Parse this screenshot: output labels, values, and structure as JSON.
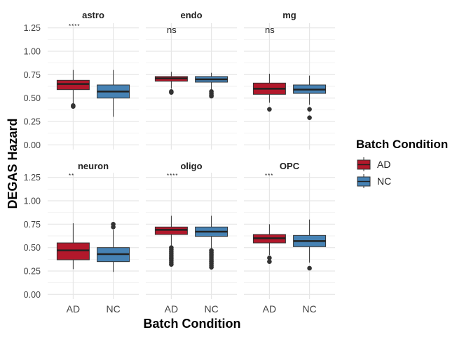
{
  "chart_data": {
    "type": "box",
    "xlabel": "Batch Condition",
    "ylabel": "DEGAS Hazard",
    "ylim": [
      -0.05,
      1.3
    ],
    "yticks": [
      "0.00",
      "0.25",
      "0.50",
      "0.75",
      "1.00",
      "1.25"
    ],
    "categories": [
      "AD",
      "NC"
    ],
    "legend": {
      "title": "Batch Condition",
      "placement": "right",
      "items": [
        {
          "label": "AD",
          "color": "#b2182b"
        },
        {
          "label": "NC",
          "color": "#4682b4"
        }
      ]
    },
    "panels": [
      {
        "title": "astro",
        "annotation": "****",
        "boxes": [
          {
            "group": "AD",
            "q1": 0.59,
            "median": 0.65,
            "q3": 0.69,
            "whisker_low": 0.43,
            "whisker_high": 0.8,
            "outliers": [
              0.41,
              0.42
            ]
          },
          {
            "group": "NC",
            "q1": 0.5,
            "median": 0.57,
            "q3": 0.64,
            "whisker_low": 0.3,
            "whisker_high": 0.8,
            "outliers": []
          }
        ]
      },
      {
        "title": "endo",
        "annotation": "ns",
        "boxes": [
          {
            "group": "AD",
            "q1": 0.68,
            "median": 0.71,
            "q3": 0.73,
            "whisker_low": 0.6,
            "whisker_high": 0.78,
            "outliers": [
              0.56,
              0.57
            ]
          },
          {
            "group": "NC",
            "q1": 0.67,
            "median": 0.7,
            "q3": 0.73,
            "whisker_low": 0.59,
            "whisker_high": 0.77,
            "outliers": [
              0.57,
              0.55,
              0.53,
              0.52
            ]
          }
        ]
      },
      {
        "title": "mg",
        "annotation": "ns",
        "boxes": [
          {
            "group": "AD",
            "q1": 0.54,
            "median": 0.6,
            "q3": 0.66,
            "whisker_low": 0.45,
            "whisker_high": 0.76,
            "outliers": [
              0.38
            ]
          },
          {
            "group": "NC",
            "q1": 0.55,
            "median": 0.59,
            "q3": 0.64,
            "whisker_low": 0.43,
            "whisker_high": 0.74,
            "outliers": [
              0.38,
              0.29
            ]
          }
        ]
      },
      {
        "title": "neuron",
        "annotation": "**",
        "boxes": [
          {
            "group": "AD",
            "q1": 0.37,
            "median": 0.47,
            "q3": 0.55,
            "whisker_low": 0.27,
            "whisker_high": 0.76,
            "outliers": []
          },
          {
            "group": "NC",
            "q1": 0.35,
            "median": 0.43,
            "q3": 0.5,
            "whisker_low": 0.24,
            "whisker_high": 0.69,
            "outliers": [
              0.75,
              0.72
            ]
          }
        ]
      },
      {
        "title": "oligo",
        "annotation": "****",
        "boxes": [
          {
            "group": "AD",
            "q1": 0.64,
            "median": 0.69,
            "q3": 0.72,
            "whisker_low": 0.51,
            "whisker_high": 0.84,
            "outliers": [
              0.5,
              0.48,
              0.46,
              0.44,
              0.42,
              0.4,
              0.38,
              0.36,
              0.34,
              0.32
            ]
          },
          {
            "group": "NC",
            "q1": 0.62,
            "median": 0.67,
            "q3": 0.72,
            "whisker_low": 0.48,
            "whisker_high": 0.84,
            "outliers": [
              0.47,
              0.45,
              0.43,
              0.41,
              0.39,
              0.37,
              0.35,
              0.33,
              0.31,
              0.29
            ]
          }
        ]
      },
      {
        "title": "OPC",
        "annotation": "***",
        "boxes": [
          {
            "group": "AD",
            "q1": 0.55,
            "median": 0.6,
            "q3": 0.64,
            "whisker_low": 0.42,
            "whisker_high": 0.75,
            "outliers": [
              0.39,
              0.35
            ]
          },
          {
            "group": "NC",
            "q1": 0.51,
            "median": 0.57,
            "q3": 0.63,
            "whisker_low": 0.34,
            "whisker_high": 0.8,
            "outliers": [
              0.28
            ]
          }
        ]
      }
    ],
    "grid": true
  }
}
